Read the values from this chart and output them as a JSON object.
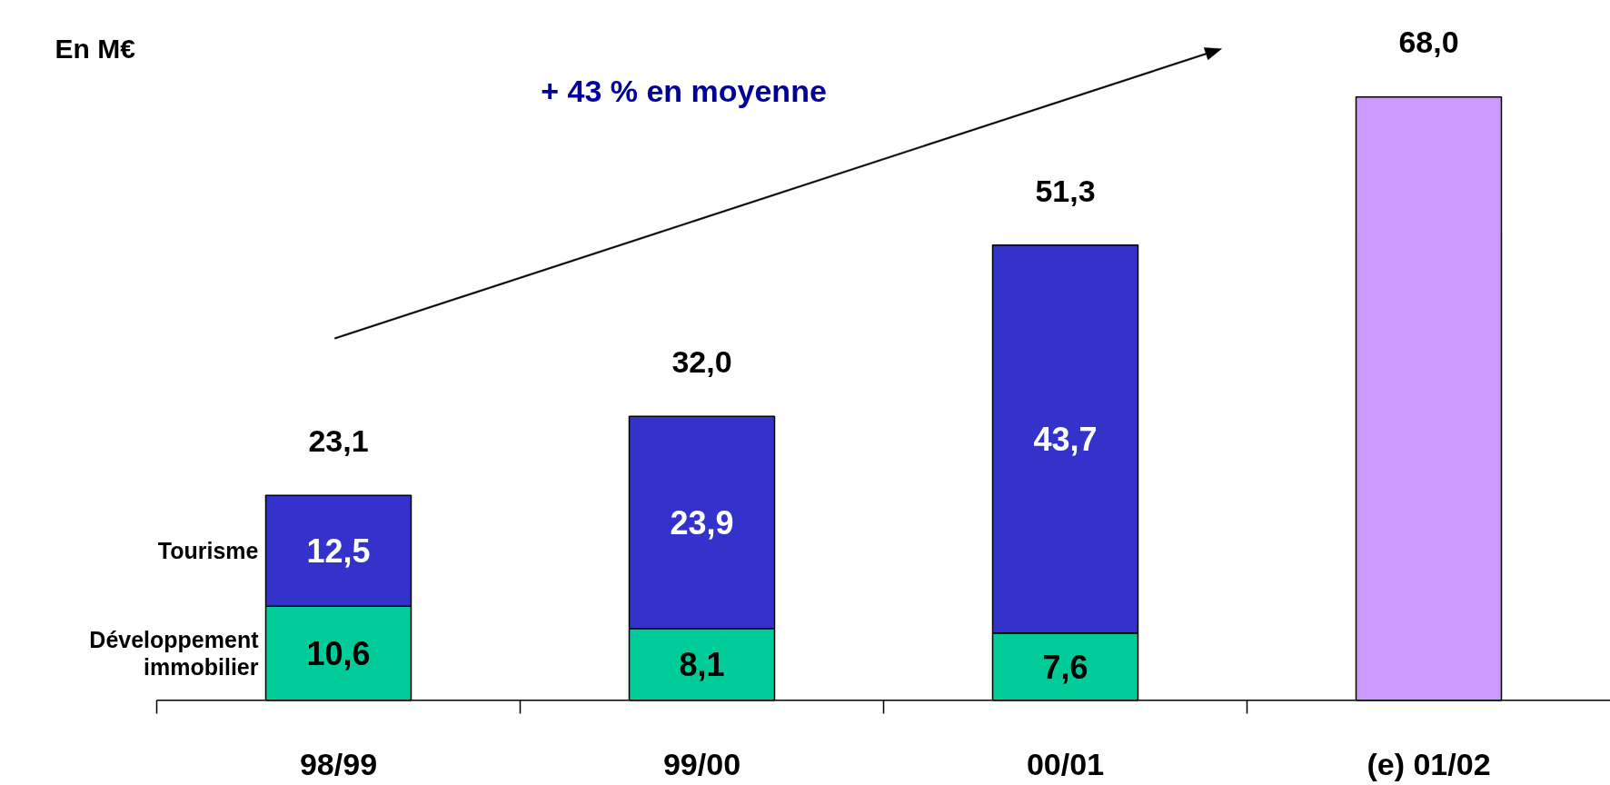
{
  "chart_data": {
    "type": "bar",
    "stacked": true,
    "categories": [
      "98/99",
      "99/00",
      "00/01",
      "(e) 01/02"
    ],
    "series": [
      {
        "name": "Développement immobilier",
        "color": "#00cc99",
        "values": [
          10.6,
          8.1,
          7.6,
          null
        ],
        "value_labels": [
          "10,6",
          "8,1",
          "7,6",
          null
        ]
      },
      {
        "name": "Tourisme",
        "color": "#3333cc",
        "values": [
          12.5,
          23.9,
          43.7,
          null
        ],
        "value_labels": [
          "12,5",
          "23,9",
          "43,7",
          null
        ]
      },
      {
        "color": "#cc99ff",
        "values": [
          null,
          null,
          null,
          68.0
        ]
      }
    ],
    "totals": [
      "23,1",
      "32,0",
      "51,3",
      "68,0"
    ],
    "annotations": [
      "En M€",
      "+ 43 % en moyenne"
    ]
  }
}
